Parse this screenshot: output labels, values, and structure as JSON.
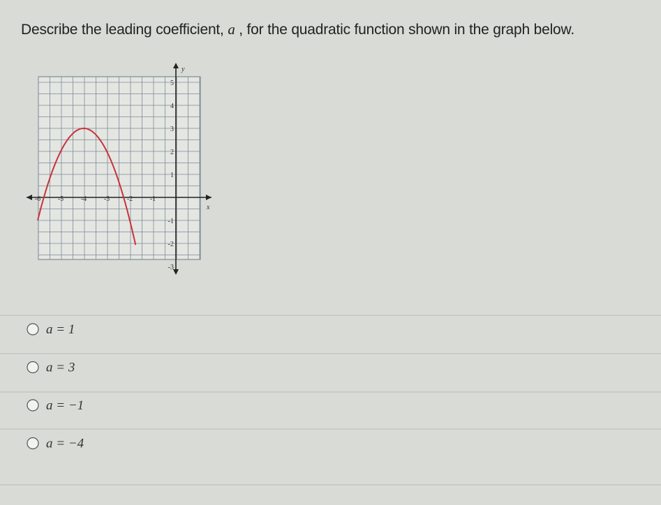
{
  "question": {
    "before": "Describe the leading coefficient, ",
    "variable": "a",
    "after": " , for the quadratic function shown in the graph below."
  },
  "graph": {
    "x_label": "x",
    "y_label": "y",
    "x_tick_labels": [
      "-6",
      "-5",
      "-4",
      "-3",
      "-2",
      "-1"
    ],
    "y_tick_labels": [
      "5",
      "4",
      "3",
      "2",
      "1",
      "-1",
      "-2",
      "-3"
    ]
  },
  "options": [
    "a = 1",
    "a = 3",
    "a = −1",
    "a = −4"
  ]
}
